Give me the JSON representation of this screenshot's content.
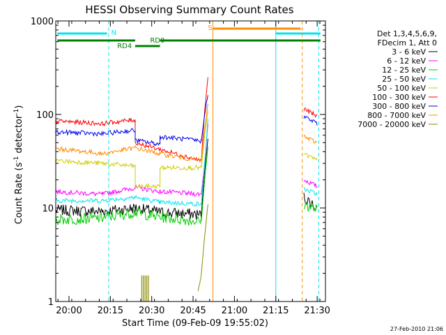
{
  "chart_data": {
    "type": "line",
    "title": "HESSI Observing Summary Count Rates",
    "xlabel": "Start Time (09-Feb-09 19:55:02)",
    "ylabel_main": "Count Rate (s",
    "ylabel_sup1": "-1",
    "ylabel_mid": " detector",
    "ylabel_sup2": "-1",
    "ylabel_end": ")",
    "yscale": "log",
    "xlim_minutes": [
      19.92,
      21.55
    ],
    "ylim": [
      1,
      1000
    ],
    "xticks": [
      {
        "label": "20:00",
        "t": 20.0
      },
      {
        "label": "20:15",
        "t": 20.25
      },
      {
        "label": "20:30",
        "t": 20.5
      },
      {
        "label": "20:45",
        "t": 20.75
      },
      {
        "label": "21:00",
        "t": 21.0
      },
      {
        "label": "21:15",
        "t": 21.25
      },
      {
        "label": "21:30",
        "t": 21.5
      }
    ],
    "yticks": [
      {
        "label": "1",
        "v": 1
      },
      {
        "label": "10",
        "v": 10
      },
      {
        "label": "100",
        "v": 100
      },
      {
        "label": "1000",
        "v": 1000
      }
    ],
    "legend_header": [
      "Det 1,3,4,5,6,9,",
      "FDecim 1, Att 0"
    ],
    "series": [
      {
        "name": "3 - 6 keV",
        "color": "#000000",
        "segments": [
          {
            "t": [
              19.92,
              20.2,
              20.4,
              20.55,
              20.8,
              20.82,
              20.84
            ],
            "y": [
              9.5,
              9.2,
              10.0,
              9.0,
              8.5,
              25,
              55
            ]
          },
          {
            "t": [
              21.42,
              21.5
            ],
            "y": [
              13,
              10
            ]
          }
        ]
      },
      {
        "name": "6 - 12 keV",
        "color": "#ff00ff",
        "segments": [
          {
            "t": [
              19.92,
              20.2,
              20.4,
              20.55,
              20.8,
              20.82,
              20.84
            ],
            "y": [
              15,
              14,
              16.5,
              15,
              14,
              30,
              80
            ]
          },
          {
            "t": [
              21.42,
              21.5
            ],
            "y": [
              20,
              17
            ]
          }
        ]
      },
      {
        "name": "12 - 25 keV",
        "color": "#00cc00",
        "segments": [
          {
            "t": [
              19.92,
              20.2,
              20.4,
              20.55,
              20.8,
              20.82,
              20.84
            ],
            "y": [
              7.5,
              7.8,
              9.0,
              8.0,
              7.2,
              20,
              45
            ]
          },
          {
            "t": [
              21.42,
              21.5
            ],
            "y": [
              11,
              9.5
            ]
          }
        ]
      },
      {
        "name": "25 - 50 keV",
        "color": "#00e5ee",
        "segments": [
          {
            "t": [
              19.92,
              20.2,
              20.4,
              20.55,
              20.8,
              20.82,
              20.84
            ],
            "y": [
              12,
              12,
              13,
              11.5,
              11,
              30,
              90
            ]
          },
          {
            "t": [
              21.42,
              21.5
            ],
            "y": [
              16,
              14
            ]
          }
        ]
      },
      {
        "name": "50 - 100 keV",
        "color": "#cccc00",
        "segments": [
          {
            "t": [
              19.92,
              20.2,
              20.4,
              20.4,
              20.55,
              20.55,
              20.8,
              20.82,
              20.84
            ],
            "y": [
              32,
              30,
              28,
              17,
              17,
              27,
              27,
              60,
              110
            ]
          },
          {
            "t": [
              21.42,
              21.5
            ],
            "y": [
              38,
              32
            ]
          }
        ]
      },
      {
        "name": "100 - 300 keV",
        "color": "#ff0000",
        "segments": [
          {
            "t": [
              19.92,
              20.2,
              20.4,
              20.4,
              20.8,
              20.82,
              20.84
            ],
            "y": [
              85,
              80,
              88,
              50,
              32,
              110,
              250
            ]
          },
          {
            "t": [
              21.42,
              21.5
            ],
            "y": [
              115,
              95
            ]
          }
        ]
      },
      {
        "name": "300 - 800 keV",
        "color": "#0000ee",
        "segments": [
          {
            "t": [
              19.92,
              20.2,
              20.4,
              20.4,
              20.55,
              20.55,
              20.8,
              20.82,
              20.84
            ],
            "y": [
              65,
              62,
              68,
              53,
              48,
              58,
              52,
              100,
              170
            ]
          },
          {
            "t": [
              21.42,
              21.5
            ],
            "y": [
              95,
              80
            ]
          }
        ]
      },
      {
        "name": "800 - 7000 keV",
        "color": "#ff8c00",
        "segments": [
          {
            "t": [
              19.92,
              20.1,
              20.2,
              20.4,
              20.55,
              20.8,
              20.82,
              20.84
            ],
            "y": [
              43,
              40,
              38,
              44,
              38,
              32,
              70,
              130
            ]
          },
          {
            "t": [
              21.42,
              21.5
            ],
            "y": [
              58,
              50
            ]
          }
        ]
      },
      {
        "name": "7000 - 20000 keV",
        "color": "#8b8b00",
        "segments": [
          {
            "t": [
              20.78,
              20.8,
              20.82,
              20.84
            ],
            "y": [
              1.3,
              2.0,
              5.0,
              11
            ]
          }
        ]
      }
    ],
    "spikes_7000": [
      20.44,
      20.45,
      20.46,
      20.47,
      20.48
    ],
    "flags": [
      {
        "label": "N",
        "color": "#00e5ee",
        "segments": [
          [
            19.93,
            20.23
          ],
          [
            21.25,
            21.52
          ]
        ],
        "lines": [
          {
            "t": 20.24,
            "style": "dashed"
          },
          {
            "t": 21.25,
            "style": "solid"
          },
          {
            "t": 21.51,
            "style": "dashed"
          }
        ]
      },
      {
        "label": "S",
        "color": "#ff8c00",
        "segments": [
          [
            20.87,
            21.4
          ]
        ],
        "lines": [
          {
            "t": 20.87,
            "style": "solid"
          },
          {
            "t": 21.41,
            "style": "dashed"
          }
        ]
      },
      {
        "label": "RD0",
        "color": "#008000",
        "segments": [
          [
            19.93,
            20.4
          ],
          [
            20.55,
            21.52
          ]
        ]
      },
      {
        "label": "RD4",
        "color": "#008000",
        "segments": [
          [
            20.4,
            20.55
          ]
        ]
      }
    ],
    "timestamp": "27-Feb-2010 21:06"
  }
}
